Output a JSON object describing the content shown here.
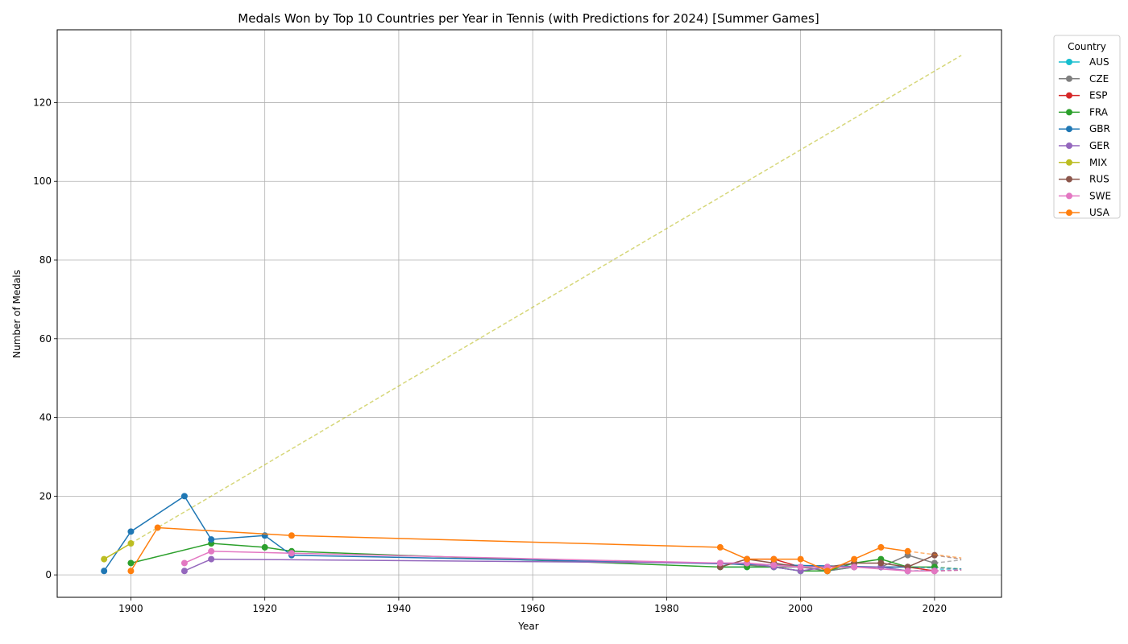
{
  "chart_data": {
    "type": "line",
    "title": "Medals Won by Top 10 Countries per Year in Tennis (with Predictions for 2024) [Summer Games]",
    "xlabel": "Year",
    "ylabel": "Number of Medals",
    "xlim": [
      1889,
      2030
    ],
    "ylim": [
      -5.7,
      138.5
    ],
    "x_ticks": [
      1900,
      1920,
      1940,
      1960,
      1980,
      2000,
      2020
    ],
    "y_ticks": [
      0,
      20,
      40,
      60,
      80,
      100,
      120
    ],
    "grid": true,
    "legend": {
      "title": "Country",
      "placement": "outside top-right"
    },
    "prediction_year": 2024,
    "series": [
      {
        "name": "AUS",
        "color": "#17becf",
        "x": [
          1988,
          1992,
          1996,
          2000,
          2004,
          2008,
          2012,
          2016
        ],
        "y": [
          2,
          2,
          2,
          1,
          1,
          2,
          2,
          1
        ],
        "predicted": 1.5
      },
      {
        "name": "CZE",
        "color": "#7f7f7f",
        "x": [
          1988,
          1996,
          2000,
          2004,
          2008,
          2012,
          2016,
          2020
        ],
        "y": [
          3,
          2,
          2,
          1,
          2,
          2,
          5,
          3
        ],
        "predicted": 3.8
      },
      {
        "name": "ESP",
        "color": "#d62728",
        "x": [
          1992,
          1996,
          2000,
          2004,
          2008,
          2012,
          2016,
          2020
        ],
        "y": [
          4,
          4,
          2,
          2,
          2,
          2,
          2,
          1
        ],
        "predicted": 1.2
      },
      {
        "name": "FRA",
        "color": "#2ca02c",
        "x": [
          1900,
          1912,
          1920,
          1924,
          1988,
          1992,
          1996,
          2000,
          2004,
          2008,
          2012,
          2016,
          2020
        ],
        "y": [
          3,
          8,
          7,
          6,
          2,
          2,
          2,
          1,
          1,
          3,
          4,
          2,
          2
        ],
        "predicted": 1.5
      },
      {
        "name": "GBR",
        "color": "#1f77b4",
        "x": [
          1896,
          1900,
          1908,
          1912,
          1920,
          1924,
          2012,
          2016
        ],
        "y": [
          1,
          11,
          20,
          9,
          10,
          5,
          2,
          2
        ],
        "predicted": 1.5
      },
      {
        "name": "GER",
        "color": "#9467bd",
        "x": [
          1908,
          1912,
          1988,
          1992,
          1996,
          2000,
          2004,
          2008,
          2012,
          2016,
          2020
        ],
        "y": [
          1,
          4,
          3,
          3,
          2,
          1,
          2,
          2,
          2,
          1,
          1
        ],
        "predicted": 1.2
      },
      {
        "name": "MIX",
        "color": "#bcbd22",
        "x": [
          1896,
          1900
        ],
        "y": [
          4,
          8
        ],
        "predicted": 132
      },
      {
        "name": "RUS",
        "color": "#8c564b",
        "x": [
          1988,
          1992,
          1996,
          2000,
          2004,
          2008,
          2012,
          2016,
          2020
        ],
        "y": [
          2,
          4,
          3,
          2,
          2,
          3,
          3,
          2,
          5
        ],
        "predicted": 4
      },
      {
        "name": "SWE",
        "color": "#e377c2",
        "x": [
          1908,
          1912,
          1924,
          1988,
          1992,
          1996,
          2000,
          2004,
          2008,
          2016,
          2020
        ],
        "y": [
          3,
          6,
          5.5,
          3,
          3,
          2.5,
          2,
          2,
          2,
          1,
          1
        ],
        "predicted": 1.3
      },
      {
        "name": "USA",
        "color": "#ff7f0e",
        "x": [
          1900,
          1904,
          1924,
          1988,
          1992,
          1996,
          2000,
          2004,
          2008,
          2012,
          2016
        ],
        "y": [
          1,
          12,
          10,
          7,
          4,
          4,
          4,
          1,
          4,
          7,
          6
        ],
        "predicted": 4.3
      }
    ]
  }
}
